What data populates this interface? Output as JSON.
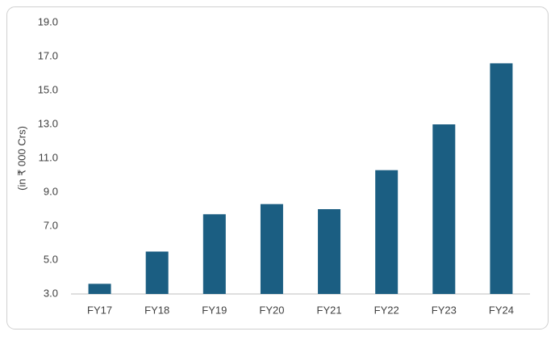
{
  "chart_data": {
    "type": "bar",
    "y_label": "(in ₹ 000 Crs)",
    "categories": [
      "FY17",
      "FY18",
      "FY19",
      "FY20",
      "FY21",
      "FY22",
      "FY23",
      "FY24"
    ],
    "values": [
      3.6,
      5.5,
      7.7,
      8.3,
      8.0,
      10.3,
      13.0,
      16.6
    ],
    "color": "#1b5e82",
    "ylim": [
      3,
      19
    ],
    "yticks": [
      {
        "value": 3,
        "label": "3.0"
      },
      {
        "value": 5,
        "label": "5.0"
      },
      {
        "value": 7,
        "label": "7.0"
      },
      {
        "value": 9,
        "label": "9.0"
      },
      {
        "value": 11,
        "label": "11.0"
      },
      {
        "value": 13,
        "label": "13.0"
      },
      {
        "value": 15,
        "label": "15.0"
      },
      {
        "value": 17,
        "label": "17.0"
      },
      {
        "value": 19,
        "label": "19.0"
      }
    ],
    "grid": false
  }
}
